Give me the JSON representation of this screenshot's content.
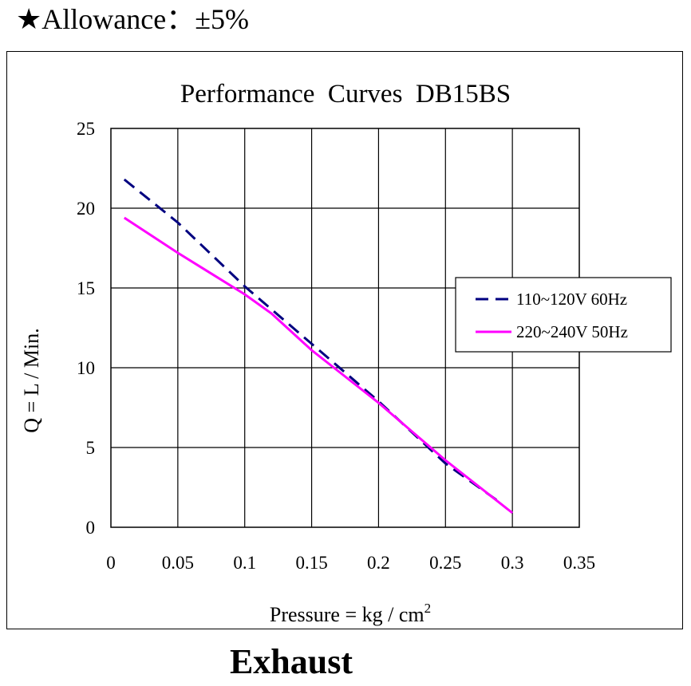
{
  "header": {
    "allowance": "★Allowance：±5%"
  },
  "footer": {
    "label": "Exhaust"
  },
  "chart_data": {
    "type": "line",
    "title": "Performance  Curves  DB15BS",
    "xlabel": "Pressure = kg / cm",
    "xlabel_superscript": "2",
    "ylabel": "Q = L / Min.",
    "xlim": [
      0,
      0.35
    ],
    "ylim": [
      0,
      25
    ],
    "xticks": [
      0,
      0.05,
      0.1,
      0.15,
      0.2,
      0.25,
      0.3,
      0.35
    ],
    "xtick_labels": [
      "0",
      "0.05",
      "0.1",
      "0.15",
      "0.2",
      "0.25",
      "0.3",
      "0.35"
    ],
    "yticks": [
      0,
      5,
      10,
      15,
      20,
      25
    ],
    "ytick_labels": [
      "0",
      "5",
      "10",
      "15",
      "20",
      "25"
    ],
    "grid": true,
    "legend_position": "right",
    "series": [
      {
        "name": "110~120V 60Hz",
        "color": "#000080",
        "style": "dashed",
        "x": [
          0.01,
          0.05,
          0.1,
          0.15,
          0.2,
          0.25,
          0.29
        ],
        "y": [
          21.8,
          19.1,
          15.1,
          11.5,
          7.9,
          4.0,
          1.6
        ]
      },
      {
        "name": "220~240V 50Hz",
        "color": "#FF00FF",
        "style": "solid",
        "x": [
          0.01,
          0.05,
          0.1,
          0.12,
          0.15,
          0.2,
          0.25,
          0.3
        ],
        "y": [
          19.4,
          17.2,
          14.6,
          13.4,
          11.1,
          7.8,
          4.2,
          0.9
        ]
      }
    ]
  }
}
